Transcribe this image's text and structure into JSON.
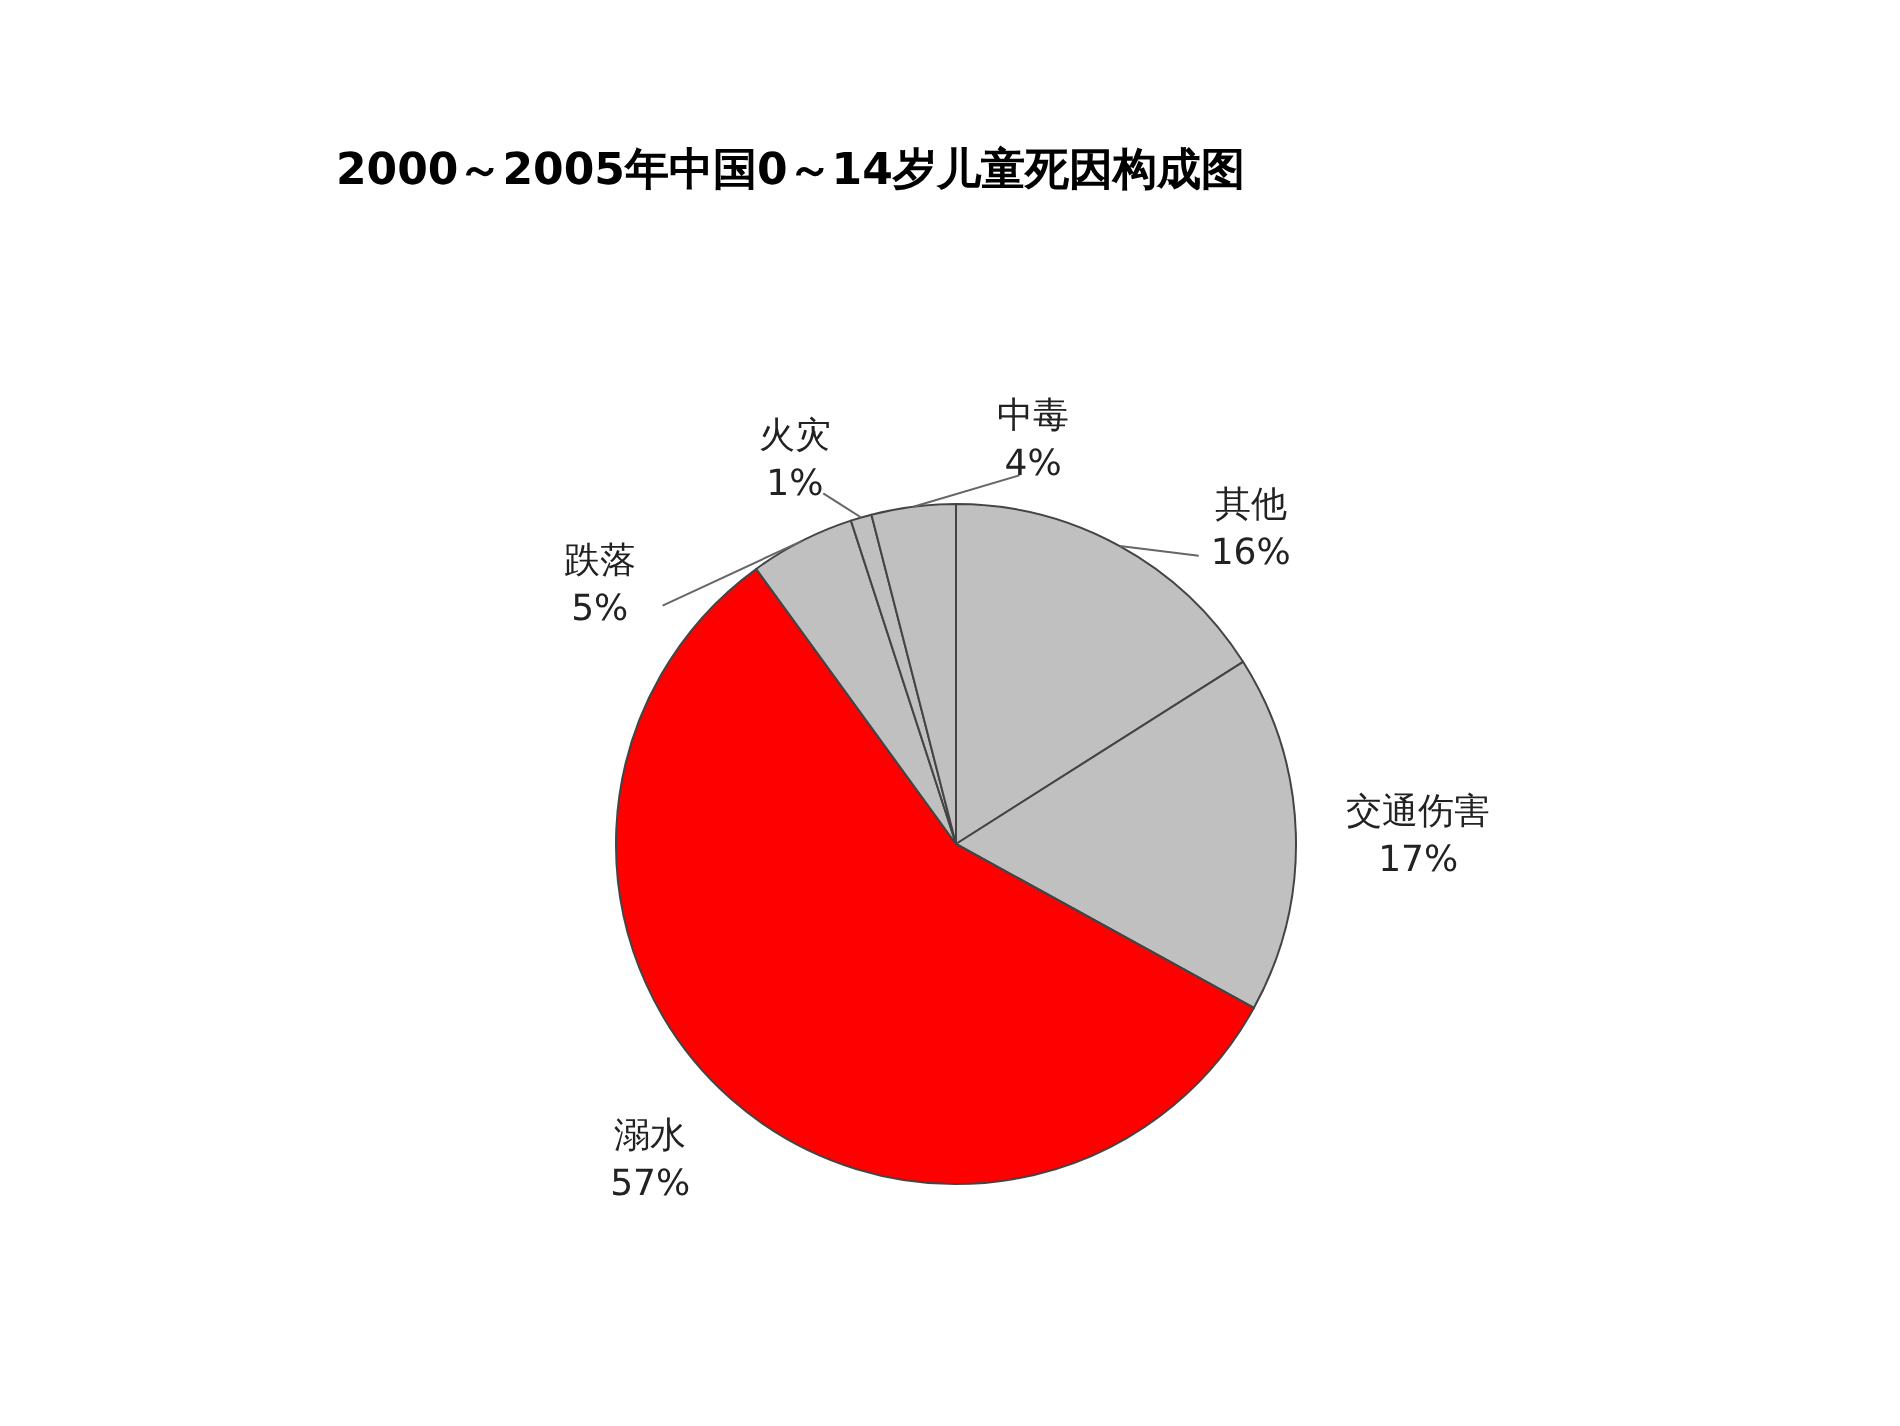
{
  "chart_data": {
    "type": "pie",
    "title": "2000～2005年中国0～14岁儿童死因构成图",
    "categories": [
      "其他",
      "交通伤害",
      "溺水",
      "跌落",
      "火灾",
      "中毒"
    ],
    "values": [
      16,
      17,
      57,
      5,
      1,
      4
    ],
    "value_labels": [
      "16%",
      "17%",
      "57%",
      "5%",
      "1%",
      "4%"
    ],
    "colors": [
      "#c0c0c0",
      "#c0c0c0",
      "#ff0000",
      "#c0c0c0",
      "#c0c0c0",
      "#c0c0c0"
    ]
  }
}
